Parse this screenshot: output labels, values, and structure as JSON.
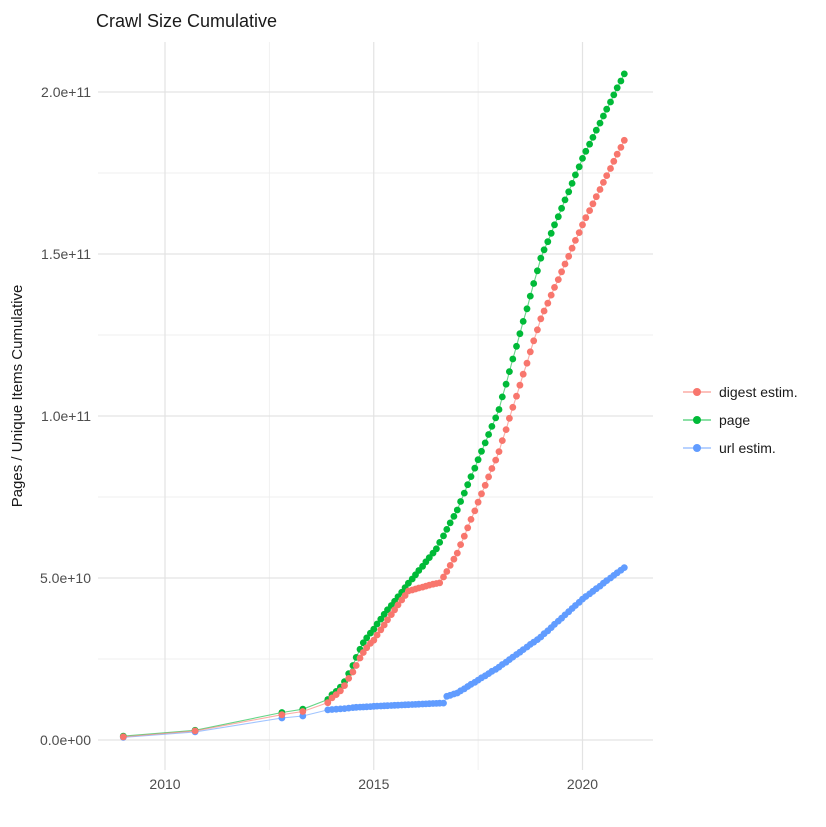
{
  "title": "Crawl Size Cumulative",
  "chart_data": {
    "type": "scatter",
    "title": "Crawl Size Cumulative",
    "xlabel": "",
    "ylabel": "Pages / Unique Items Cumulative",
    "x_unit": "year",
    "y_unit": "items cumulative (billions, 1e9)",
    "grid": true,
    "legend_position": "right",
    "xlim": [
      2008.4,
      2021.7
    ],
    "ylim_e9": [
      0,
      215
    ],
    "x_ticks": [
      2010,
      2015,
      2020
    ],
    "x_tick_labels": [
      "2010",
      "2015",
      "2020"
    ],
    "x_minor_ticks": [
      2012.5,
      2017.5
    ],
    "y_ticks_e9": [
      0,
      50,
      100,
      150,
      200
    ],
    "y_tick_labels": [
      "0.0e+00",
      "5.0e+10",
      "1.0e+11",
      "1.5e+11",
      "2.0e+11"
    ],
    "y_minor_ticks_e9": [
      25,
      75,
      125,
      175
    ],
    "series": [
      {
        "name": "digest estim.",
        "color": "#F8766D",
        "points": [
          [
            2009.0,
            1.0
          ],
          [
            2010.72,
            2.8
          ],
          [
            2012.8,
            7.8
          ],
          [
            2013.3,
            8.8
          ],
          [
            2013.9,
            11.5
          ],
          [
            2014.0,
            13.0
          ],
          [
            2014.1,
            14.0
          ],
          [
            2014.2,
            15.2
          ],
          [
            2014.3,
            16.8
          ],
          [
            2014.4,
            19.0
          ],
          [
            2014.5,
            21.0
          ],
          [
            2014.58,
            23.0
          ],
          [
            2014.67,
            25.3
          ],
          [
            2014.75,
            27.0
          ],
          [
            2014.83,
            28.5
          ],
          [
            2014.92,
            29.8
          ],
          [
            2015.0,
            30.8
          ],
          [
            2015.08,
            32.4
          ],
          [
            2015.17,
            34.0
          ],
          [
            2015.25,
            35.5
          ],
          [
            2015.33,
            37.1
          ],
          [
            2015.42,
            38.7
          ],
          [
            2015.5,
            40.2
          ],
          [
            2015.58,
            41.7
          ],
          [
            2015.67,
            43.2
          ],
          [
            2015.75,
            44.6
          ],
          [
            2015.83,
            46.0
          ],
          [
            2015.92,
            46.3
          ],
          [
            2016.0,
            46.6
          ],
          [
            2016.08,
            46.9
          ],
          [
            2016.17,
            47.2
          ],
          [
            2016.25,
            47.5
          ],
          [
            2016.33,
            47.8
          ],
          [
            2016.42,
            48.1
          ],
          [
            2016.5,
            48.3
          ],
          [
            2016.58,
            48.5
          ],
          [
            2016.67,
            50.3
          ],
          [
            2016.75,
            52.0
          ],
          [
            2016.83,
            53.9
          ],
          [
            2016.92,
            55.8
          ],
          [
            2017.0,
            57.7
          ],
          [
            2017.08,
            60.3
          ],
          [
            2017.17,
            62.9
          ],
          [
            2017.25,
            65.5
          ],
          [
            2017.33,
            68.1
          ],
          [
            2017.42,
            70.7
          ],
          [
            2017.5,
            73.4
          ],
          [
            2017.58,
            76.0
          ],
          [
            2017.67,
            78.6
          ],
          [
            2017.75,
            81.2
          ],
          [
            2017.83,
            83.8
          ],
          [
            2017.92,
            86.4
          ],
          [
            2018.0,
            89.0
          ],
          [
            2018.08,
            92.4
          ],
          [
            2018.17,
            95.8
          ],
          [
            2018.25,
            99.3
          ],
          [
            2018.33,
            102.7
          ],
          [
            2018.42,
            106.1
          ],
          [
            2018.5,
            109.5
          ],
          [
            2018.58,
            112.9
          ],
          [
            2018.67,
            116.3
          ],
          [
            2018.75,
            119.8
          ],
          [
            2018.83,
            123.2
          ],
          [
            2018.92,
            126.6
          ],
          [
            2019.0,
            130.0
          ],
          [
            2019.08,
            132.4
          ],
          [
            2019.17,
            134.8
          ],
          [
            2019.25,
            137.3
          ],
          [
            2019.33,
            139.7
          ],
          [
            2019.42,
            142.1
          ],
          [
            2019.5,
            144.5
          ],
          [
            2019.58,
            146.9
          ],
          [
            2019.67,
            149.3
          ],
          [
            2019.75,
            151.8
          ],
          [
            2019.83,
            154.2
          ],
          [
            2019.92,
            156.6
          ],
          [
            2020.0,
            159.0
          ],
          [
            2020.08,
            161.2
          ],
          [
            2020.17,
            163.4
          ],
          [
            2020.25,
            165.5
          ],
          [
            2020.33,
            167.7
          ],
          [
            2020.42,
            169.9
          ],
          [
            2020.5,
            172.1
          ],
          [
            2020.58,
            174.2
          ],
          [
            2020.67,
            176.4
          ],
          [
            2020.75,
            178.6
          ],
          [
            2020.83,
            180.8
          ],
          [
            2020.92,
            182.9
          ],
          [
            2021.0,
            185.1
          ]
        ]
      },
      {
        "name": "page",
        "color": "#00BA38",
        "points": [
          [
            2009.0,
            1.2
          ],
          [
            2010.72,
            3.0
          ],
          [
            2012.8,
            8.5
          ],
          [
            2013.3,
            9.5
          ],
          [
            2013.9,
            12.5
          ],
          [
            2014.0,
            14.0
          ],
          [
            2014.1,
            15.0
          ],
          [
            2014.2,
            16.3
          ],
          [
            2014.3,
            18.0
          ],
          [
            2014.4,
            20.5
          ],
          [
            2014.5,
            23.0
          ],
          [
            2014.58,
            25.5
          ],
          [
            2014.67,
            28.0
          ],
          [
            2014.75,
            30.0
          ],
          [
            2014.83,
            31.5
          ],
          [
            2014.92,
            33.0
          ],
          [
            2015.0,
            34.2
          ],
          [
            2015.08,
            35.8
          ],
          [
            2015.17,
            37.3
          ],
          [
            2015.25,
            38.8
          ],
          [
            2015.33,
            40.2
          ],
          [
            2015.42,
            41.5
          ],
          [
            2015.5,
            42.8
          ],
          [
            2015.58,
            44.2
          ],
          [
            2015.67,
            45.6
          ],
          [
            2015.75,
            47.0
          ],
          [
            2015.83,
            48.4
          ],
          [
            2015.92,
            49.7
          ],
          [
            2016.0,
            51.0
          ],
          [
            2016.08,
            52.3
          ],
          [
            2016.17,
            53.6
          ],
          [
            2016.25,
            55.0
          ],
          [
            2016.33,
            56.3
          ],
          [
            2016.42,
            57.7
          ],
          [
            2016.5,
            59.0
          ],
          [
            2016.58,
            61.0
          ],
          [
            2016.67,
            63.0
          ],
          [
            2016.75,
            65.0
          ],
          [
            2016.83,
            67.0
          ],
          [
            2016.92,
            69.0
          ],
          [
            2017.0,
            71.0
          ],
          [
            2017.08,
            73.6
          ],
          [
            2017.17,
            76.2
          ],
          [
            2017.25,
            78.8
          ],
          [
            2017.33,
            81.3
          ],
          [
            2017.42,
            83.9
          ],
          [
            2017.5,
            86.5
          ],
          [
            2017.58,
            89.1
          ],
          [
            2017.67,
            91.7
          ],
          [
            2017.75,
            94.3
          ],
          [
            2017.83,
            96.8
          ],
          [
            2017.92,
            99.4
          ],
          [
            2018.0,
            102.0
          ],
          [
            2018.08,
            105.9
          ],
          [
            2018.17,
            109.8
          ],
          [
            2018.25,
            113.7
          ],
          [
            2018.33,
            117.6
          ],
          [
            2018.42,
            121.5
          ],
          [
            2018.5,
            125.4
          ],
          [
            2018.58,
            129.2
          ],
          [
            2018.67,
            133.1
          ],
          [
            2018.75,
            137.0
          ],
          [
            2018.83,
            140.9
          ],
          [
            2018.92,
            144.8
          ],
          [
            2019.0,
            148.7
          ],
          [
            2019.08,
            151.3
          ],
          [
            2019.17,
            153.8
          ],
          [
            2019.25,
            156.4
          ],
          [
            2019.33,
            159.0
          ],
          [
            2019.42,
            161.5
          ],
          [
            2019.5,
            164.1
          ],
          [
            2019.58,
            166.7
          ],
          [
            2019.67,
            169.2
          ],
          [
            2019.75,
            171.8
          ],
          [
            2019.83,
            174.4
          ],
          [
            2019.92,
            176.9
          ],
          [
            2020.0,
            179.5
          ],
          [
            2020.08,
            181.7
          ],
          [
            2020.17,
            183.9
          ],
          [
            2020.25,
            186.0
          ],
          [
            2020.33,
            188.2
          ],
          [
            2020.42,
            190.4
          ],
          [
            2020.5,
            192.6
          ],
          [
            2020.58,
            194.7
          ],
          [
            2020.67,
            196.9
          ],
          [
            2020.75,
            199.1
          ],
          [
            2020.83,
            201.3
          ],
          [
            2020.92,
            203.4
          ],
          [
            2021.0,
            205.6
          ]
        ]
      },
      {
        "name": "url estim.",
        "color": "#619CFF",
        "points": [
          [
            2009.0,
            0.8
          ],
          [
            2010.72,
            2.5
          ],
          [
            2012.8,
            6.8
          ],
          [
            2013.3,
            7.4
          ],
          [
            2013.9,
            9.3
          ],
          [
            2014.0,
            9.4
          ],
          [
            2014.1,
            9.5
          ],
          [
            2014.2,
            9.6
          ],
          [
            2014.3,
            9.7
          ],
          [
            2014.4,
            9.85
          ],
          [
            2014.5,
            10.0
          ],
          [
            2014.58,
            10.1
          ],
          [
            2014.67,
            10.15
          ],
          [
            2014.75,
            10.2
          ],
          [
            2014.83,
            10.25
          ],
          [
            2014.92,
            10.3
          ],
          [
            2015.0,
            10.4
          ],
          [
            2015.08,
            10.45
          ],
          [
            2015.17,
            10.5
          ],
          [
            2015.25,
            10.55
          ],
          [
            2015.33,
            10.6
          ],
          [
            2015.42,
            10.65
          ],
          [
            2015.5,
            10.7
          ],
          [
            2015.58,
            10.75
          ],
          [
            2015.67,
            10.8
          ],
          [
            2015.75,
            10.85
          ],
          [
            2015.83,
            10.9
          ],
          [
            2015.92,
            10.95
          ],
          [
            2016.0,
            11.0
          ],
          [
            2016.08,
            11.05
          ],
          [
            2016.17,
            11.1
          ],
          [
            2016.25,
            11.15
          ],
          [
            2016.33,
            11.2
          ],
          [
            2016.42,
            11.25
          ],
          [
            2016.5,
            11.3
          ],
          [
            2016.58,
            11.35
          ],
          [
            2016.67,
            11.4
          ],
          [
            2016.75,
            13.5
          ],
          [
            2016.83,
            13.8
          ],
          [
            2016.92,
            14.2
          ],
          [
            2017.0,
            14.5
          ],
          [
            2017.08,
            15.2
          ],
          [
            2017.17,
            15.8
          ],
          [
            2017.25,
            16.5
          ],
          [
            2017.33,
            17.2
          ],
          [
            2017.42,
            17.8
          ],
          [
            2017.5,
            18.5
          ],
          [
            2017.58,
            19.2
          ],
          [
            2017.67,
            19.8
          ],
          [
            2017.75,
            20.5
          ],
          [
            2017.83,
            21.2
          ],
          [
            2017.92,
            21.8
          ],
          [
            2018.0,
            22.5
          ],
          [
            2018.08,
            23.3
          ],
          [
            2018.17,
            24.0
          ],
          [
            2018.25,
            24.8
          ],
          [
            2018.33,
            25.6
          ],
          [
            2018.42,
            26.4
          ],
          [
            2018.5,
            27.1
          ],
          [
            2018.58,
            27.9
          ],
          [
            2018.67,
            28.7
          ],
          [
            2018.75,
            29.5
          ],
          [
            2018.83,
            30.2
          ],
          [
            2018.92,
            31.0
          ],
          [
            2019.0,
            31.8
          ],
          [
            2019.08,
            32.8
          ],
          [
            2019.17,
            33.7
          ],
          [
            2019.25,
            34.7
          ],
          [
            2019.33,
            35.7
          ],
          [
            2019.42,
            36.7
          ],
          [
            2019.5,
            37.6
          ],
          [
            2019.58,
            38.6
          ],
          [
            2019.67,
            39.6
          ],
          [
            2019.75,
            40.6
          ],
          [
            2019.83,
            41.5
          ],
          [
            2019.92,
            42.5
          ],
          [
            2020.0,
            43.5
          ],
          [
            2020.08,
            44.3
          ],
          [
            2020.17,
            45.1
          ],
          [
            2020.25,
            45.9
          ],
          [
            2020.33,
            46.7
          ],
          [
            2020.42,
            47.5
          ],
          [
            2020.5,
            48.4
          ],
          [
            2020.58,
            49.2
          ],
          [
            2020.67,
            50.0
          ],
          [
            2020.75,
            50.8
          ],
          [
            2020.83,
            51.6
          ],
          [
            2020.92,
            52.4
          ],
          [
            2021.0,
            53.2
          ]
        ]
      }
    ]
  },
  "legend": {
    "items": [
      {
        "label": "digest estim.",
        "color": "#F8766D"
      },
      {
        "label": "page",
        "color": "#00BA38"
      },
      {
        "label": "url estim.",
        "color": "#619CFF"
      }
    ]
  }
}
